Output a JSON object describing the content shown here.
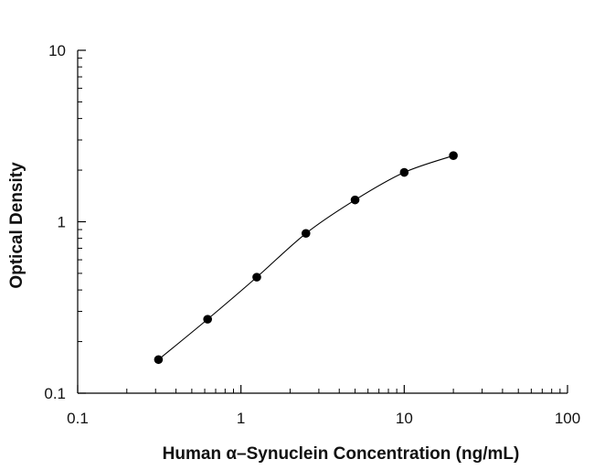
{
  "chart_data": {
    "type": "scatter",
    "xlabel": "Human α–Synuclein Concentration (ng/mL)",
    "ylabel": "Optical Density",
    "xscale": "log",
    "yscale": "log",
    "xlim": [
      0.1,
      100
    ],
    "ylim": [
      0.1,
      10
    ],
    "xticks": [
      {
        "value": 0.1,
        "label": "0.1"
      },
      {
        "value": 1,
        "label": "1"
      },
      {
        "value": 10,
        "label": "10"
      },
      {
        "value": 100,
        "label": "100"
      }
    ],
    "yticks": [
      {
        "value": 0.1,
        "label": "0.1"
      },
      {
        "value": 1,
        "label": "1"
      },
      {
        "value": 10,
        "label": "10"
      }
    ],
    "grid": false,
    "legend": "none",
    "fit_curve": true,
    "marker_color": "#000000",
    "series": [
      {
        "x": [
          0.3125,
          0.625,
          1.25,
          2.5,
          5,
          10,
          20
        ],
        "y": [
          0.157,
          0.27,
          0.475,
          0.855,
          1.34,
          1.94,
          2.43
        ]
      }
    ]
  }
}
